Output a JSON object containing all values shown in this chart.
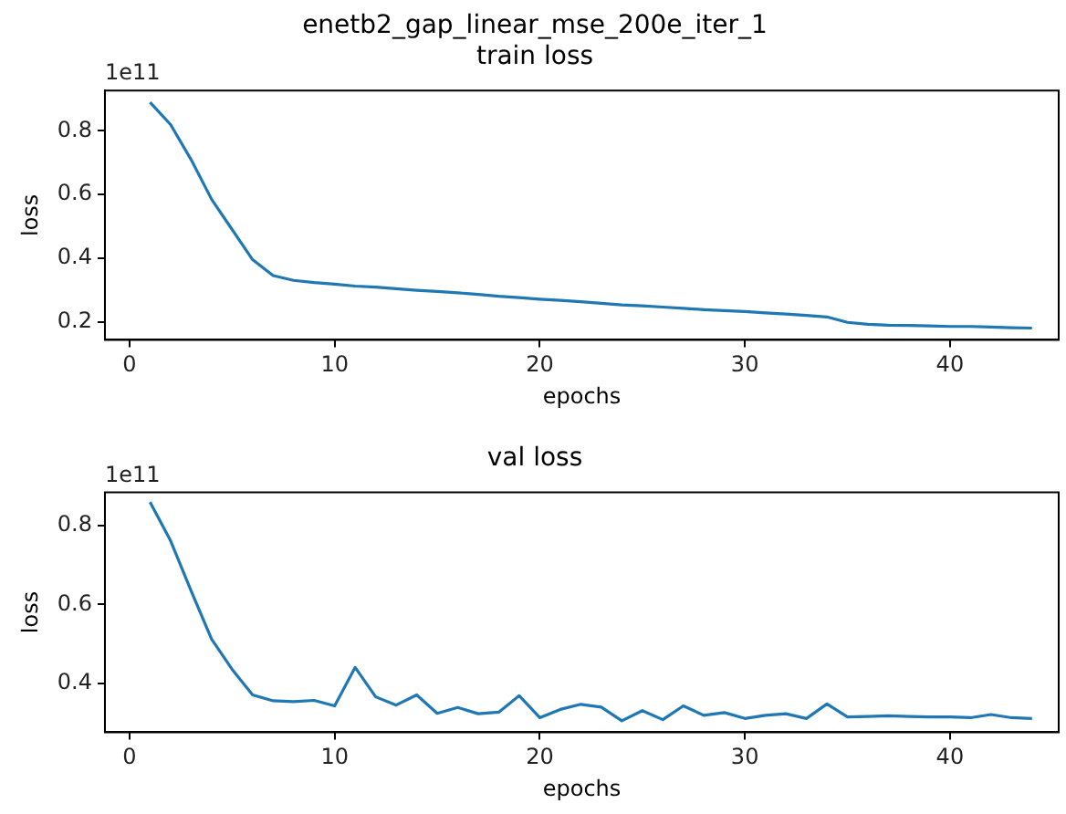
{
  "chart_data": [
    {
      "type": "line",
      "title": "enetb2_gap_linear_mse_200e_iter_1",
      "subtitle": "train loss",
      "xlabel": "epochs",
      "ylabel": "loss",
      "annotations": [
        "1e11"
      ],
      "x": [
        1,
        2,
        3,
        4,
        5,
        6,
        7,
        8,
        9,
        10,
        11,
        12,
        13,
        14,
        15,
        16,
        17,
        18,
        19,
        20,
        21,
        22,
        23,
        24,
        25,
        26,
        27,
        28,
        29,
        30,
        31,
        32,
        33,
        34,
        35,
        36,
        37,
        38,
        39,
        40,
        41,
        42,
        43,
        44
      ],
      "series": [
        {
          "color": "#1f77b4",
          "values": [
            0.89,
            0.82,
            0.71,
            0.585,
            0.49,
            0.395,
            0.345,
            0.33,
            0.323,
            0.318,
            0.312,
            0.309,
            0.304,
            0.299,
            0.295,
            0.291,
            0.286,
            0.28,
            0.276,
            0.271,
            0.267,
            0.263,
            0.258,
            0.253,
            0.25,
            0.246,
            0.242,
            0.238,
            0.235,
            0.232,
            0.228,
            0.224,
            0.22,
            0.215,
            0.198,
            0.192,
            0.189,
            0.188,
            0.187,
            0.185,
            0.185,
            0.183,
            0.181,
            0.18
          ]
        }
      ],
      "xlim": [
        -1.2,
        45.3
      ],
      "xticks": [
        0,
        10,
        20,
        30,
        40
      ],
      "ylim": [
        0.143,
        0.927
      ],
      "yticks": [
        0.2,
        0.4,
        0.6,
        0.8
      ],
      "grid": false,
      "legend": false
    },
    {
      "type": "line",
      "title": "val loss",
      "xlabel": "epochs",
      "ylabel": "loss",
      "annotations": [
        "1e11"
      ],
      "x": [
        1,
        2,
        3,
        4,
        5,
        6,
        7,
        8,
        9,
        10,
        11,
        12,
        13,
        14,
        15,
        16,
        17,
        18,
        19,
        20,
        21,
        22,
        23,
        24,
        25,
        26,
        27,
        28,
        29,
        30,
        31,
        32,
        33,
        34,
        35,
        36,
        37,
        38,
        39,
        40,
        41,
        42,
        43,
        44
      ],
      "series": [
        {
          "color": "#1f77b4",
          "values": [
            0.86,
            0.762,
            0.635,
            0.512,
            0.435,
            0.37,
            0.355,
            0.353,
            0.356,
            0.342,
            0.44,
            0.365,
            0.344,
            0.37,
            0.323,
            0.338,
            0.322,
            0.326,
            0.368,
            0.312,
            0.333,
            0.346,
            0.339,
            0.304,
            0.33,
            0.307,
            0.342,
            0.318,
            0.325,
            0.31,
            0.318,
            0.322,
            0.31,
            0.347,
            0.314,
            0.315,
            0.317,
            0.315,
            0.314,
            0.314,
            0.312,
            0.32,
            0.312,
            0.31
          ]
        }
      ],
      "xlim": [
        -1.2,
        45.3
      ],
      "xticks": [
        0,
        10,
        20,
        30,
        40
      ],
      "ylim": [
        0.275,
        0.885
      ],
      "yticks": [
        0.4,
        0.6,
        0.8
      ],
      "grid": false,
      "legend": false
    }
  ]
}
